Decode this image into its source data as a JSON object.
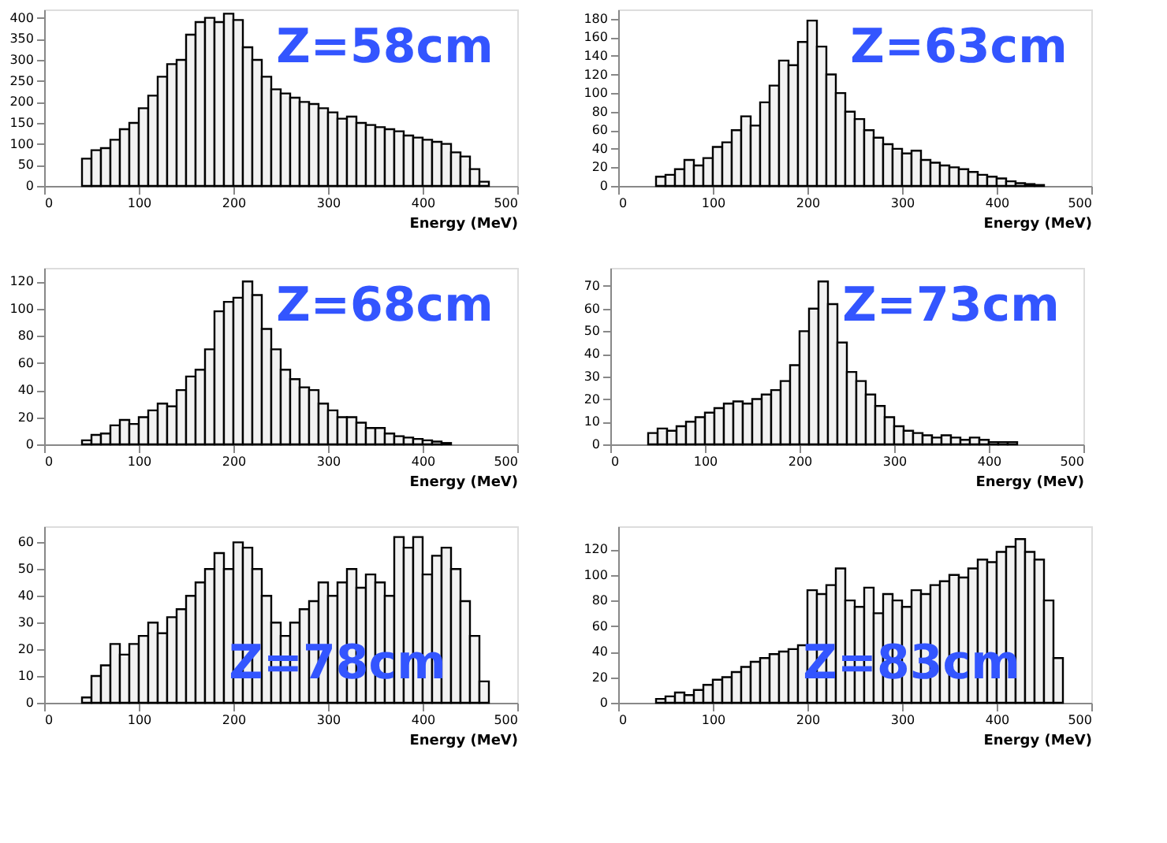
{
  "chart_data": [
    {
      "type": "histogram",
      "xlabel": "Energy (MeV)",
      "annotations": [
        "Z=58cm"
      ],
      "xlim": [
        0,
        500
      ],
      "xticks": [
        0,
        100,
        200,
        300,
        400,
        500
      ],
      "ylim": [
        0,
        420
      ],
      "yticks": [
        0,
        50,
        100,
        150,
        200,
        250,
        300,
        350,
        400
      ],
      "bins": [
        40,
        50,
        60,
        70,
        80,
        90,
        100,
        110,
        120,
        130,
        140,
        150,
        160,
        170,
        180,
        190,
        200,
        210,
        220,
        230,
        240,
        250,
        260,
        270,
        280,
        290,
        300,
        310,
        320,
        330,
        340,
        350,
        360,
        370,
        380,
        390,
        400,
        410,
        420,
        430,
        440,
        450,
        460,
        470
      ],
      "values": [
        65,
        85,
        90,
        110,
        135,
        150,
        185,
        215,
        260,
        290,
        300,
        360,
        390,
        400,
        390,
        410,
        395,
        330,
        300,
        260,
        230,
        220,
        210,
        200,
        195,
        185,
        175,
        160,
        165,
        150,
        145,
        140,
        135,
        130,
        120,
        115,
        110,
        105,
        100,
        80,
        70,
        40,
        10
      ]
    },
    {
      "type": "histogram",
      "xlabel": "Energy (MeV)",
      "annotations": [
        "Z=63cm"
      ],
      "xlim": [
        0,
        500
      ],
      "xticks": [
        0,
        100,
        200,
        300,
        400,
        500
      ],
      "ylim": [
        0,
        190
      ],
      "yticks": [
        0,
        20,
        40,
        60,
        80,
        100,
        120,
        140,
        160,
        180
      ],
      "bins": [
        40,
        50,
        60,
        70,
        80,
        90,
        100,
        110,
        120,
        130,
        140,
        150,
        160,
        170,
        180,
        190,
        200,
        210,
        220,
        230,
        240,
        250,
        260,
        270,
        280,
        290,
        300,
        310,
        320,
        330,
        340,
        350,
        360,
        370,
        380,
        390,
        400,
        410,
        420,
        430,
        440,
        450
      ],
      "values": [
        10,
        12,
        18,
        28,
        22,
        30,
        42,
        47,
        60,
        75,
        65,
        90,
        108,
        135,
        130,
        155,
        178,
        150,
        120,
        100,
        80,
        72,
        60,
        52,
        45,
        40,
        35,
        38,
        28,
        25,
        22,
        20,
        18,
        15,
        12,
        10,
        8,
        5,
        3,
        2,
        1
      ]
    },
    {
      "type": "histogram",
      "xlabel": "Energy (MeV)",
      "annotations": [
        "Z=68cm"
      ],
      "xlim": [
        0,
        500
      ],
      "xticks": [
        0,
        100,
        200,
        300,
        400,
        500
      ],
      "ylim": [
        0,
        130
      ],
      "yticks": [
        0,
        20,
        40,
        60,
        80,
        100,
        120
      ],
      "bins": [
        40,
        50,
        60,
        70,
        80,
        90,
        100,
        110,
        120,
        130,
        140,
        150,
        160,
        170,
        180,
        190,
        200,
        210,
        220,
        230,
        240,
        250,
        260,
        270,
        280,
        290,
        300,
        310,
        320,
        330,
        340,
        350,
        360,
        370,
        380,
        390,
        400,
        410,
        420,
        430
      ],
      "values": [
        3,
        7,
        8,
        14,
        18,
        15,
        20,
        25,
        30,
        28,
        40,
        50,
        55,
        70,
        98,
        105,
        108,
        120,
        110,
        85,
        70,
        55,
        48,
        42,
        40,
        30,
        25,
        20,
        20,
        16,
        12,
        12,
        8,
        6,
        5,
        4,
        3,
        2,
        1
      ]
    },
    {
      "type": "histogram",
      "xlabel": "Energy (MeV)",
      "annotations": [
        "Z=73cm"
      ],
      "xlim": [
        0,
        500
      ],
      "xticks": [
        0,
        100,
        200,
        300,
        400,
        500
      ],
      "ylim": [
        0,
        78
      ],
      "yticks": [
        0,
        10,
        20,
        30,
        40,
        50,
        60,
        70
      ],
      "bins": [
        40,
        50,
        60,
        70,
        80,
        90,
        100,
        110,
        120,
        130,
        140,
        150,
        160,
        170,
        180,
        190,
        200,
        210,
        220,
        230,
        240,
        250,
        260,
        270,
        280,
        290,
        300,
        310,
        320,
        330,
        340,
        350,
        360,
        370,
        380,
        390,
        400,
        410,
        420,
        430
      ],
      "values": [
        5,
        7,
        6,
        8,
        10,
        12,
        14,
        16,
        18,
        19,
        18,
        20,
        22,
        24,
        28,
        35,
        50,
        60,
        72,
        62,
        45,
        32,
        28,
        22,
        17,
        12,
        8,
        6,
        5,
        4,
        3,
        4,
        3,
        2,
        3,
        2,
        1,
        1,
        1
      ]
    },
    {
      "type": "histogram",
      "xlabel": "Energy (MeV)",
      "annotations": [
        "Z=78cm"
      ],
      "xlim": [
        0,
        500
      ],
      "xticks": [
        0,
        100,
        200,
        300,
        400,
        500
      ],
      "ylim": [
        0,
        66
      ],
      "yticks": [
        0,
        10,
        20,
        30,
        40,
        50,
        60
      ],
      "bins": [
        40,
        50,
        60,
        70,
        80,
        90,
        100,
        110,
        120,
        130,
        140,
        150,
        160,
        170,
        180,
        190,
        200,
        210,
        220,
        230,
        240,
        250,
        260,
        270,
        280,
        290,
        300,
        310,
        320,
        330,
        340,
        350,
        360,
        370,
        380,
        390,
        400,
        410,
        420,
        430,
        440,
        450,
        460,
        470
      ],
      "values": [
        2,
        10,
        14,
        22,
        18,
        22,
        25,
        30,
        26,
        32,
        35,
        40,
        45,
        50,
        56,
        50,
        60,
        58,
        50,
        40,
        30,
        25,
        30,
        35,
        38,
        45,
        40,
        45,
        50,
        43,
        48,
        45,
        40,
        62,
        58,
        62,
        48,
        55,
        58,
        50,
        38,
        25,
        8
      ]
    },
    {
      "type": "histogram",
      "xlabel": "Energy (MeV)",
      "annotations": [
        "Z=83cm"
      ],
      "xlim": [
        0,
        500
      ],
      "xticks": [
        0,
        100,
        200,
        300,
        400,
        500
      ],
      "ylim": [
        0,
        138
      ],
      "yticks": [
        0,
        20,
        40,
        60,
        80,
        100,
        120
      ],
      "bins": [
        40,
        50,
        60,
        70,
        80,
        90,
        100,
        110,
        120,
        130,
        140,
        150,
        160,
        170,
        180,
        190,
        200,
        210,
        220,
        230,
        240,
        250,
        260,
        270,
        280,
        290,
        300,
        310,
        320,
        330,
        340,
        350,
        360,
        370,
        380,
        390,
        400,
        410,
        420,
        430,
        440,
        450,
        460,
        470
      ],
      "values": [
        3,
        5,
        8,
        6,
        10,
        14,
        18,
        20,
        24,
        28,
        32,
        35,
        38,
        40,
        42,
        45,
        88,
        85,
        92,
        105,
        80,
        75,
        90,
        70,
        85,
        80,
        75,
        88,
        85,
        92,
        95,
        100,
        98,
        105,
        112,
        110,
        118,
        122,
        128,
        118,
        112,
        80,
        35
      ]
    }
  ]
}
